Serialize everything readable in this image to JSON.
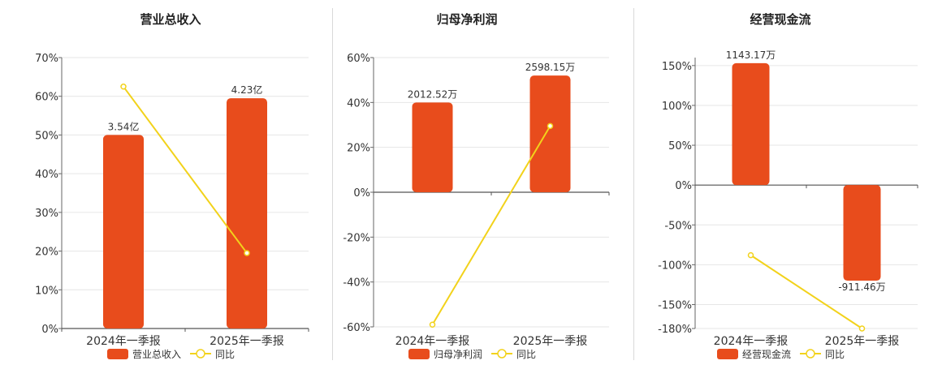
{
  "colors": {
    "bar": "#e84c1c",
    "line": "#f2d21b"
  },
  "chart_data": [
    {
      "type": "bar",
      "title": "营业总收入",
      "categories": [
        "2024年一季报",
        "2025年一季报"
      ],
      "series": [
        {
          "name": "营业总收入",
          "type": "bar",
          "values": [
            50,
            59.5
          ],
          "labels": [
            "3.54亿",
            "4.23亿"
          ]
        },
        {
          "name": "同比",
          "type": "line",
          "values": [
            62.5,
            19.5
          ]
        }
      ],
      "ylim": [
        0,
        70
      ],
      "yticks": [
        "0%",
        "10%",
        "20%",
        "30%",
        "40%",
        "50%",
        "60%",
        "70%"
      ],
      "ytick_values": [
        0,
        10,
        20,
        30,
        40,
        50,
        60,
        70
      ],
      "grid": true,
      "legend": "bottom"
    },
    {
      "type": "bar",
      "title": "归母净利润",
      "categories": [
        "2024年一季报",
        "2025年一季报"
      ],
      "series": [
        {
          "name": "归母净利润",
          "type": "bar",
          "values": [
            40,
            52
          ],
          "labels": [
            "2012.52万",
            "2598.15万"
          ]
        },
        {
          "name": "同比",
          "type": "line",
          "values": [
            -59,
            29.5
          ]
        }
      ],
      "ylim": [
        -60,
        60
      ],
      "yticks": [
        "-60%",
        "-40%",
        "-20%",
        "0%",
        "20%",
        "40%",
        "60%"
      ],
      "ytick_values": [
        -60,
        -40,
        -20,
        0,
        20,
        40,
        60
      ],
      "grid": true,
      "legend": "bottom"
    },
    {
      "type": "bar",
      "title": "经营现金流",
      "categories": [
        "2024年一季报",
        "2025年一季报"
      ],
      "series": [
        {
          "name": "经营现金流",
          "type": "bar",
          "values": [
            153,
            -120
          ],
          "labels": [
            "1143.17万",
            "-911.46万"
          ]
        },
        {
          "name": "同比",
          "type": "line",
          "values": [
            -88,
            -180
          ]
        }
      ],
      "ylim": [
        -180,
        160
      ],
      "yticks": [
        "-180%",
        "-150%",
        "-100%",
        "-50%",
        "0%",
        "50%",
        "100%",
        "150%"
      ],
      "ytick_values": [
        -180,
        -150,
        -100,
        -50,
        0,
        50,
        100,
        150
      ],
      "grid": true,
      "legend": "bottom"
    }
  ]
}
